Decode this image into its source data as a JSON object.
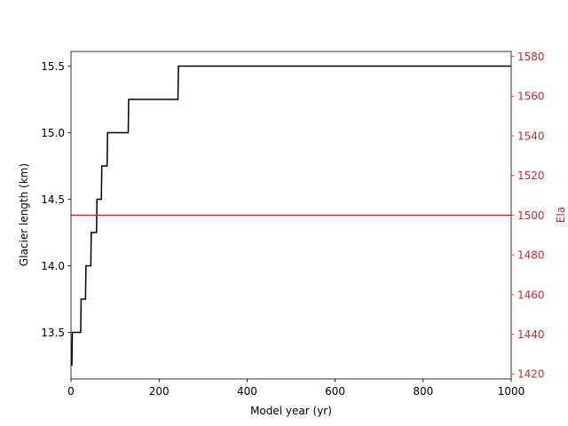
{
  "chart_data": {
    "type": "line",
    "xlabel": "Model year (yr)",
    "ylabel_left": "Glacier length (km)",
    "ylabel_right": "Ela",
    "xlim": [
      0,
      1000
    ],
    "ylim_left": [
      13.15,
      15.61
    ],
    "ylim_right": [
      1417.5,
      1582.5
    ],
    "x_ticks": [
      0,
      200,
      400,
      600,
      800,
      1000
    ],
    "y_left_ticks": [
      13.5,
      14.0,
      14.5,
      15.0,
      15.5
    ],
    "y_right_ticks": [
      1420,
      1440,
      1460,
      1480,
      1500,
      1520,
      1540,
      1560,
      1580
    ],
    "grid": false,
    "colors": {
      "length": "#000000",
      "ela": "#d62728",
      "axis": "#000000"
    },
    "series": [
      {
        "axis": "left",
        "x": [
          2,
          3,
          22,
          23,
          33,
          34,
          45,
          46,
          58,
          59,
          69,
          70,
          82,
          83,
          97,
          98,
          130,
          131,
          243,
          244,
          1000
        ],
        "y": [
          13.25,
          13.5,
          13.5,
          13.75,
          13.75,
          14.0,
          14.0,
          14.25,
          14.25,
          14.5,
          14.5,
          14.75,
          14.75,
          15.0,
          15.0,
          15.0,
          15.0,
          15.25,
          15.25,
          15.5,
          15.5
        ]
      },
      {
        "axis": "right",
        "x": [
          0,
          1000
        ],
        "y": [
          1500,
          1500
        ]
      }
    ]
  }
}
